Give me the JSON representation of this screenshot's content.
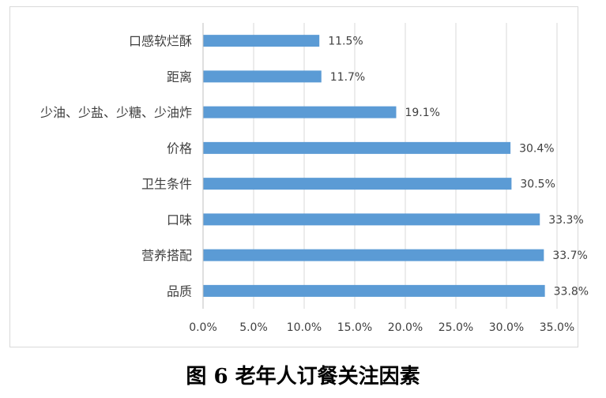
{
  "chart_data": {
    "type": "bar",
    "orientation": "horizontal",
    "categories": [
      "口感软烂酥",
      "距离",
      "少油、少盐、少糖、少油炸",
      "价格",
      "卫生条件",
      "口味",
      "营养搭配",
      "品质"
    ],
    "values": [
      11.5,
      11.7,
      19.1,
      30.4,
      30.5,
      33.3,
      33.7,
      33.8
    ],
    "value_labels": [
      "11.5%",
      "11.7%",
      "19.1%",
      "30.4%",
      "30.5%",
      "33.3%",
      "33.7%",
      "33.8%"
    ],
    "xlim": [
      0,
      35
    ],
    "x_ticks": [
      0,
      5,
      10,
      15,
      20,
      25,
      30,
      35
    ],
    "x_tick_labels": [
      "0.0%",
      "5.0%",
      "10.0%",
      "15.0%",
      "20.0%",
      "25.0%",
      "30.0%",
      "35.0%"
    ],
    "grid": "vertical",
    "legend": "none",
    "bar_color": "#5b9bd5",
    "gridline_color": "#d9d9d9",
    "label_color": "#404040"
  },
  "caption": "图 6  老年人订餐关注因素"
}
